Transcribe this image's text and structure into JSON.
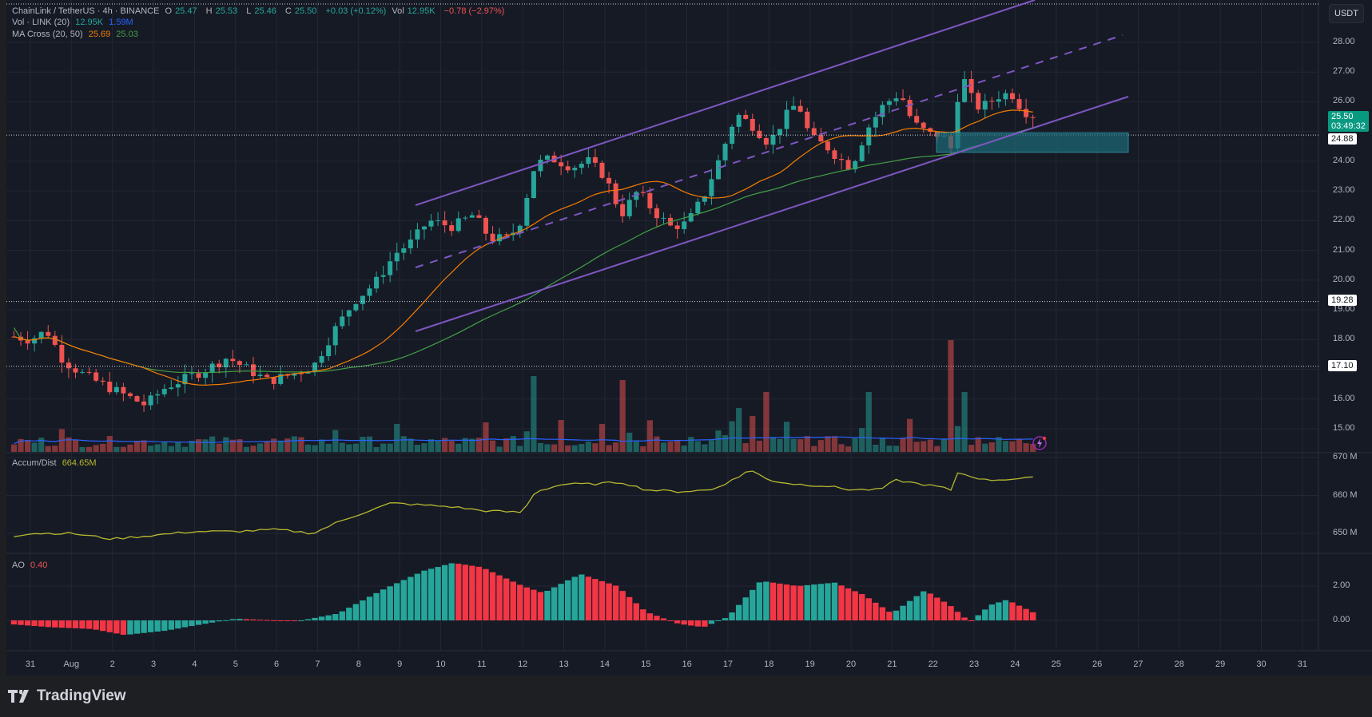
{
  "header": {
    "symbol": "ChainLink / TetherUS · 4h · BINANCE",
    "ohlc": {
      "o_label": "O",
      "o": "25.47",
      "h_label": "H",
      "h": "25.53",
      "l_label": "L",
      "l": "25.46",
      "c_label": "C",
      "c": "25.50"
    },
    "change": "+0.03 (+0.12%)",
    "vol_label": "Vol",
    "vol": "12.95K",
    "vol_change": "−0.78 (−2.97%)"
  },
  "indicators": {
    "volume": {
      "label": "Vol · LINK (20)",
      "value": "12.95K",
      "ma": "1.59M"
    },
    "ma_cross": {
      "label": "MA Cross (20, 50)",
      "fast": "25.69",
      "slow": "25.03"
    },
    "accum_dist": {
      "label": "Accum/Dist",
      "value": "664.65M"
    },
    "ao": {
      "label": "AO",
      "value": "0.40"
    }
  },
  "price_axis": {
    "currency": "USDT",
    "ticks": [
      "28.00",
      "27.00",
      "26.00",
      "24.00",
      "23.00",
      "22.00",
      "21.00",
      "20.00",
      "19.00",
      "18.00",
      "16.00",
      "15.00"
    ],
    "current_price": "25.50",
    "countdown": "03:49:32",
    "levels": [
      "24.88",
      "19.28",
      "17.10"
    ]
  },
  "accum_axis": {
    "ticks": [
      "670M",
      "660M",
      "650M"
    ]
  },
  "ao_axis": {
    "ticks": [
      "2.00",
      "0.00"
    ]
  },
  "time_axis": {
    "ticks": [
      "31",
      "Aug",
      "2",
      "3",
      "4",
      "5",
      "6",
      "7",
      "8",
      "9",
      "10",
      "11",
      "12",
      "13",
      "14",
      "15",
      "16",
      "17",
      "18",
      "19",
      "20",
      "21",
      "22",
      "23",
      "24",
      "25",
      "26",
      "27",
      "28",
      "29",
      "30",
      "31"
    ]
  },
  "footer": {
    "brand": "TradingView"
  },
  "colors": {
    "up": "#26a69a",
    "down": "#ef5350",
    "ma_fast": "#f57c00",
    "ma_slow": "#43a047",
    "vol_ma": "#2962ff",
    "channel": "#7e57c2",
    "accum": "#b5b82e",
    "zone": "#1d6b78",
    "bg": "#161a25",
    "grid": "#232734"
  },
  "chart_data": {
    "type": "candlestick",
    "title": "ChainLink / TetherUS · 4h · BINANCE",
    "xlabel": "",
    "ylabel": "USDT",
    "ylim": [
      14.5,
      28.8
    ],
    "x_range": [
      "Jul 31",
      "Aug 31"
    ],
    "grid": true,
    "horizontal_levels": [
      24.88,
      19.28,
      17.1
    ],
    "demand_zone": {
      "from": "Aug 22",
      "to": "Aug 26",
      "low": 24.3,
      "high": 24.95
    },
    "channel": {
      "upper": {
        "start": [
          "Aug 9.3",
          22.5
        ],
        "end": [
          "Aug 25",
          28.9
        ]
      },
      "mid_dashed": {
        "start": [
          "Aug 9.3",
          20.6
        ],
        "end": [
          "Aug 26.5",
          27.3
        ]
      },
      "lower": {
        "start": [
          "Aug 9.3",
          18.2
        ],
        "end": [
          "Aug 26.6",
          25.9
        ]
      }
    },
    "closes_daily": {
      "Jul 31": 18.1,
      "Aug 1": 17.0,
      "Aug 2": 16.4,
      "Aug 3": 16.5,
      "Aug 4": 16.9,
      "Aug 5": 17.2,
      "Aug 6": 16.7,
      "Aug 7": 17.0,
      "Aug 8": 18.9,
      "Aug 9": 20.7,
      "Aug 10": 21.7,
      "Aug 11": 21.5,
      "Aug 12": 21.3,
      "Aug 13": 23.8,
      "Aug 14": 23.6,
      "Aug 15": 22.4,
      "Aug 16": 21.8,
      "Aug 17": 24.3,
      "Aug 18": 25.7,
      "Aug 19": 25.3,
      "Aug 20": 24.3,
      "Aug 21": 25.8,
      "Aug 22": 24.7,
      "Aug 23": 25.9,
      "Aug 24": 25.5
    },
    "series": [
      {
        "name": "MA 20",
        "last": 25.69
      },
      {
        "name": "MA 50",
        "last": 25.03
      },
      {
        "name": "Accum/Dist (M)",
        "range": [
          647,
          671
        ],
        "last": 664.65
      },
      {
        "name": "AO",
        "range": [
          -0.8,
          3.5
        ],
        "last": 0.4
      }
    ]
  }
}
